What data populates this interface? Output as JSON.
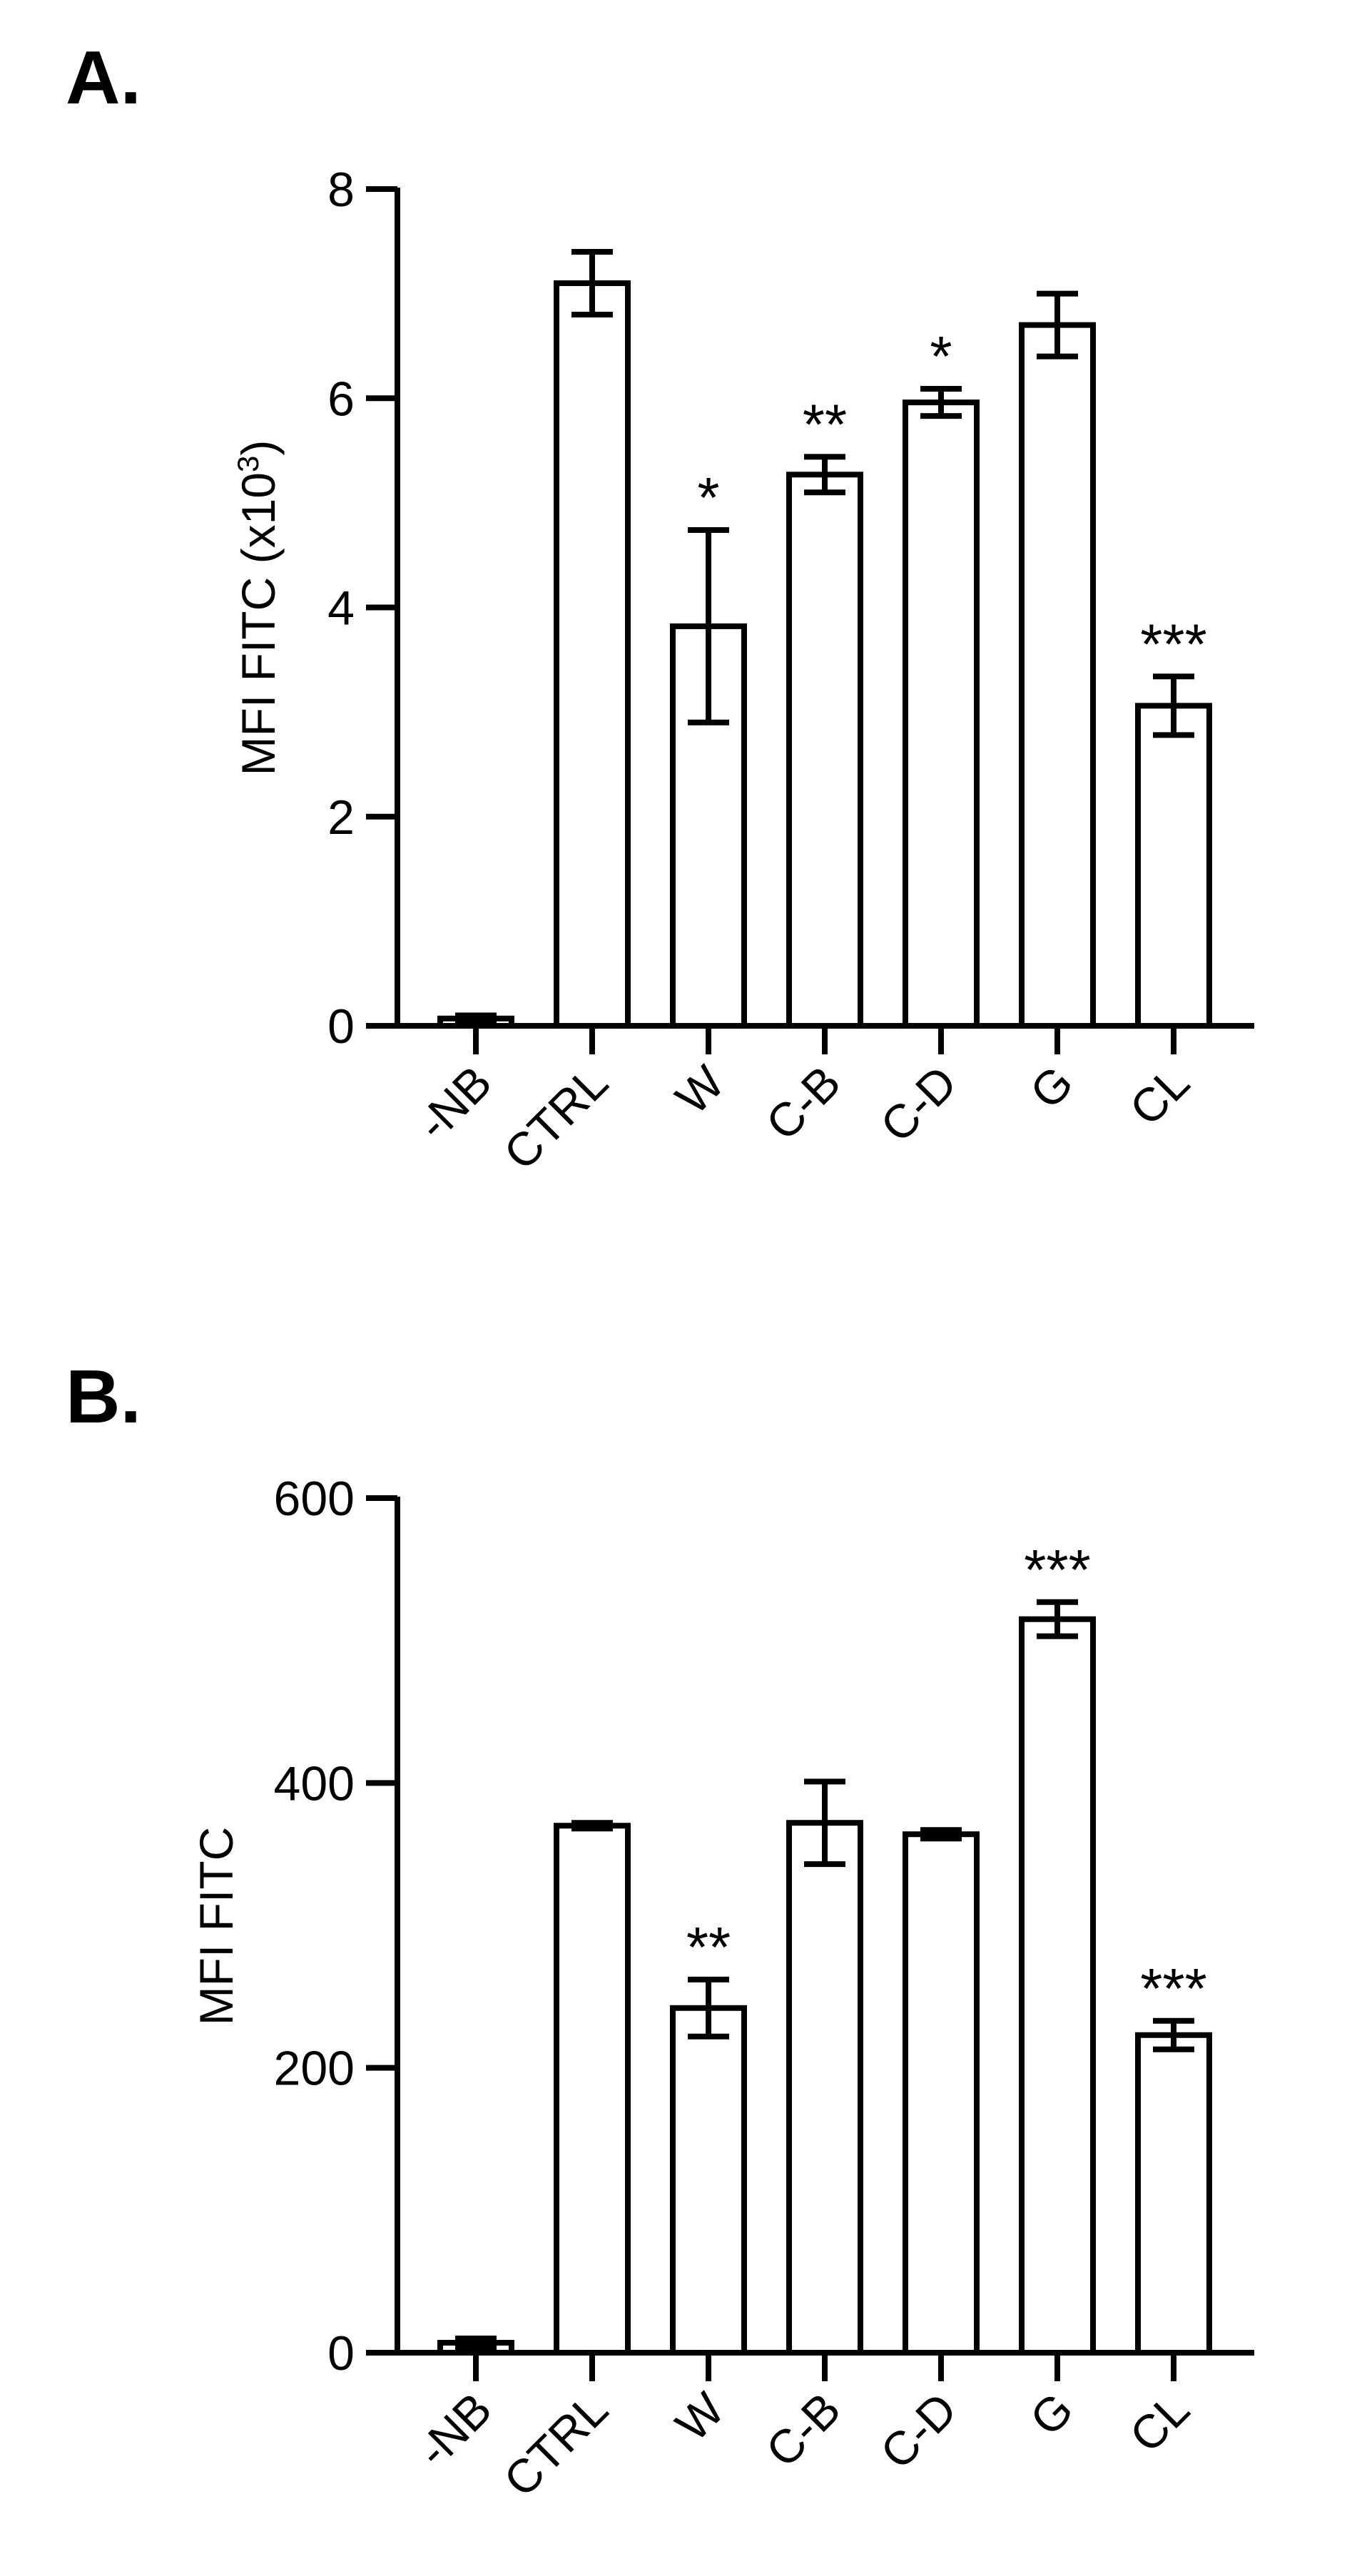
{
  "panels": [
    {
      "label": "A."
    },
    {
      "label": "B."
    }
  ],
  "chart_data": [
    {
      "type": "bar",
      "panel": "A.",
      "title": "",
      "xlabel": "",
      "ylabel": "MFI FITC (x10",
      "ylabel_sup": "3",
      "ylabel_tail": ")",
      "ylim": [
        0,
        8
      ],
      "yticks": [
        "0",
        "2",
        "4",
        "6",
        "8"
      ],
      "categories": [
        "-NB",
        "CTRL",
        "W",
        "C-B",
        "C-D",
        "G",
        "CL"
      ],
      "values": [
        0.07,
        7.1,
        3.82,
        5.27,
        5.96,
        6.7,
        3.06
      ],
      "errors": [
        0.03,
        0.3,
        0.92,
        0.17,
        0.13,
        0.3,
        0.28
      ],
      "significance": [
        "",
        "",
        "*",
        "**",
        "*",
        "",
        "***"
      ],
      "grid": false,
      "legend": false
    },
    {
      "type": "bar",
      "panel": "B.",
      "title": "",
      "xlabel": "",
      "ylabel": "MFI FITC",
      "ylim": [
        0,
        600
      ],
      "yticks": [
        "0",
        "200",
        "400",
        "600"
      ],
      "categories": [
        "-NB",
        "CTRL",
        "W",
        "C-B",
        "C-D",
        "G",
        "CL"
      ],
      "values": [
        7,
        370,
        242,
        372,
        364,
        515,
        223
      ],
      "errors": [
        3,
        2,
        20,
        29,
        3,
        12,
        10
      ],
      "significance": [
        "",
        "",
        "**",
        "",
        "",
        "***",
        "***"
      ],
      "grid": false,
      "legend": false
    }
  ]
}
